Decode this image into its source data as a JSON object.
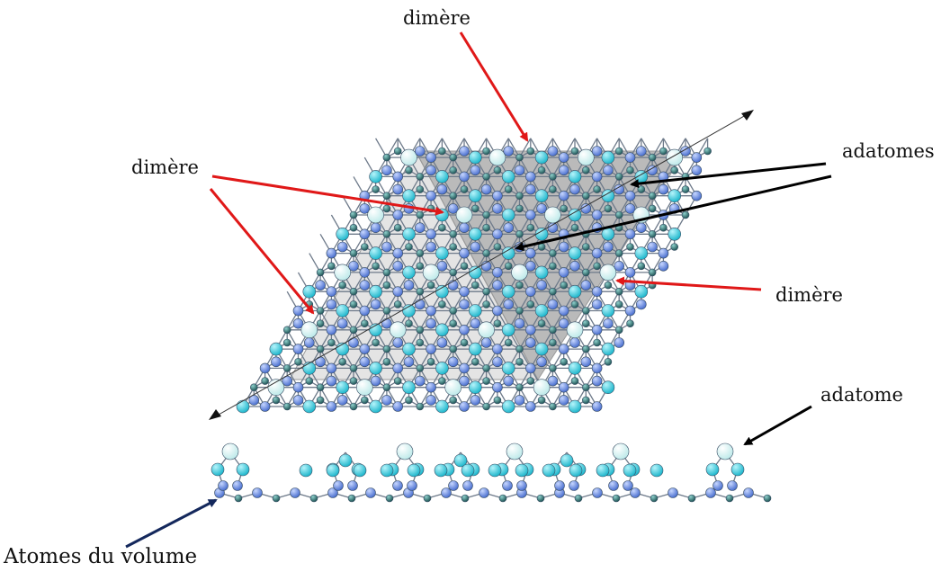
{
  "labels": {
    "dimere_top": "dimère",
    "dimere_left": "dimère",
    "dimere_right": "dimère",
    "adatomes": "adatomes",
    "adatome": "adatome",
    "atomes_volume": "Atomes du volume"
  },
  "colors": {
    "background": "#ffffff",
    "adatom": "#dff6f6",
    "restatom": "#3fd0e0",
    "dimer_atom": "#6f94e6",
    "bulk_atom": "#2f6f70",
    "bond": "#6e7a8a",
    "unit_cell_light": "#e4e4e4",
    "unit_cell_dark": "#b9b9b9",
    "arrow_red": "#e01818",
    "arrow_black": "#000000",
    "arrow_navy": "#14285c"
  }
}
